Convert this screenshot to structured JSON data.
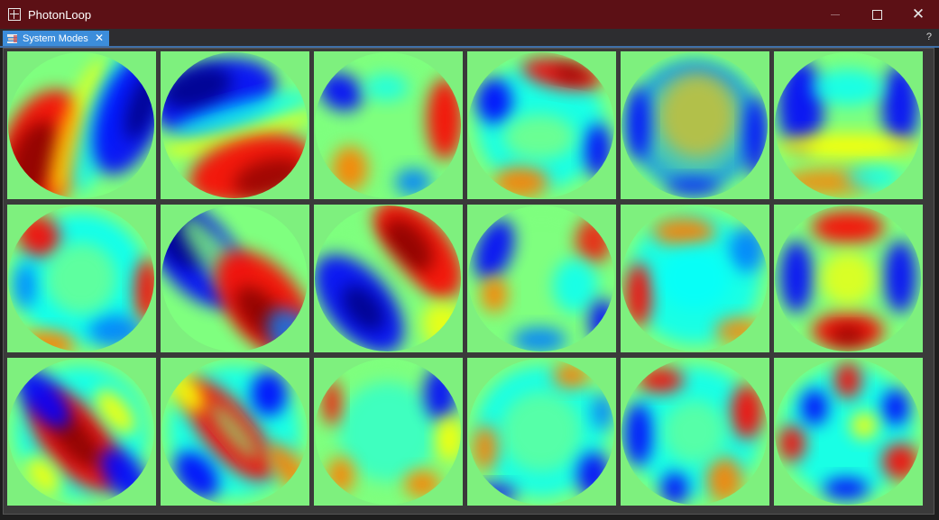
{
  "window": {
    "title": "PhotonLoop",
    "controls": {
      "minimize": "—",
      "maximize": "☐",
      "close": "✕"
    }
  },
  "tabs": [
    {
      "label": "System Modes",
      "close": "✕",
      "icon": "modes-icon"
    }
  ],
  "help": "?",
  "colormap": {
    "name": "jet",
    "background": "#7ef07e"
  },
  "modes": [
    {
      "id": 1,
      "row": 0,
      "col": 0,
      "pattern": "tilt-diagonal"
    },
    {
      "id": 2,
      "row": 0,
      "col": 1,
      "pattern": "tilt-vertical"
    },
    {
      "id": 3,
      "row": 0,
      "col": 2,
      "pattern": "trefoil"
    },
    {
      "id": 4,
      "row": 0,
      "col": 3,
      "pattern": "trefoil-rotated"
    },
    {
      "id": 5,
      "row": 0,
      "col": 4,
      "pattern": "defocus"
    },
    {
      "id": 6,
      "row": 0,
      "col": 5,
      "pattern": "coma"
    },
    {
      "id": 7,
      "row": 1,
      "col": 0,
      "pattern": "quadrafoil"
    },
    {
      "id": 8,
      "row": 1,
      "col": 1,
      "pattern": "astigmatism-diagonal"
    },
    {
      "id": 9,
      "row": 1,
      "col": 2,
      "pattern": "astigmatism-diagonal-inv"
    },
    {
      "id": 10,
      "row": 1,
      "col": 3,
      "pattern": "pentafoil"
    },
    {
      "id": 11,
      "row": 1,
      "col": 4,
      "pattern": "pentafoil-rotated"
    },
    {
      "id": 12,
      "row": 1,
      "col": 5,
      "pattern": "quadrafoil-cross"
    },
    {
      "id": 13,
      "row": 2,
      "col": 0,
      "pattern": "secondary-astig"
    },
    {
      "id": 14,
      "row": 2,
      "col": 1,
      "pattern": "secondary-astig-rotated"
    },
    {
      "id": 15,
      "row": 2,
      "col": 2,
      "pattern": "hexafoil"
    },
    {
      "id": 16,
      "row": 2,
      "col": 3,
      "pattern": "hexafoil-rotated"
    },
    {
      "id": 17,
      "row": 2,
      "col": 4,
      "pattern": "secondary-coma"
    },
    {
      "id": 18,
      "row": 2,
      "col": 5,
      "pattern": "high-order"
    }
  ]
}
